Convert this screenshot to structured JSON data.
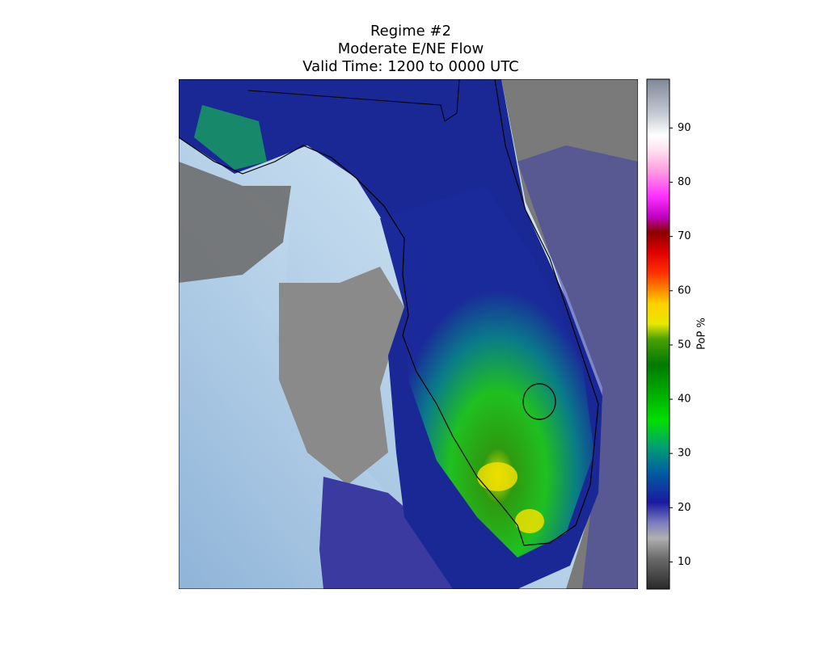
{
  "title": [
    "Regime #2",
    "Moderate E/NE Flow",
    "Valid Time: 1200 to 0000 UTC"
  ],
  "colorbar": {
    "label": "PoP %",
    "lim": [
      5,
      99
    ],
    "ticks": [
      10,
      20,
      30,
      40,
      50,
      60,
      70,
      80,
      90
    ]
  }
}
